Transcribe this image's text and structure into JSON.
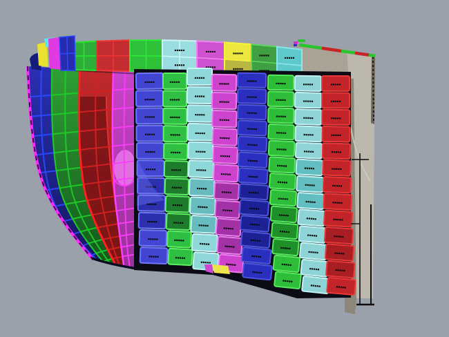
{
  "view": {
    "type": "3d-cad-viewport",
    "background": "#9ba1aa",
    "description": "Ship stern shell plating colored by strake with plate ID labels"
  },
  "plate_label_mark": "▪▪▪▪▪",
  "label_color": "#0a0a0a",
  "shell_backdrop": "#0b0b16",
  "under_shadow": "#0a0a20",
  "columns": [
    {
      "id": "col-a",
      "plates": 11,
      "fill": "#4245d2",
      "border": "#7177fb",
      "dark": "#2c2fae",
      "dark_rows": [
        6,
        9
      ]
    },
    {
      "id": "col-b",
      "plates": 11,
      "fill": "#2fc043",
      "border": "#5bf163",
      "dark": "#1e7d2c",
      "dark_rows": [
        5,
        9
      ]
    },
    {
      "id": "col-c",
      "plates": 11,
      "fill": "#8ed8da",
      "border": "#c6f5f5",
      "dark": "#68bcc0",
      "dark_rows": [
        6,
        9
      ]
    },
    {
      "id": "col-d",
      "plates": 11,
      "fill": "#cd43ce",
      "border": "#ef7cf0",
      "dark": "#a332a6",
      "dark_rows": [
        6,
        10
      ]
    },
    {
      "id": "col-e",
      "plates": 13,
      "fill": "#2a2fc0",
      "border": "#4d55e0",
      "dark": "#1d2195",
      "dark_rows": [
        7,
        11
      ]
    },
    {
      "id": "col-f",
      "plates": 13,
      "fill": "#2ebd38",
      "border": "#55ea5c",
      "dark": "#1f8f2a",
      "dark_rows": [
        8,
        11
      ]
    },
    {
      "id": "col-g",
      "plates": 13,
      "fill": "#8ed4d6",
      "border": "#c2f1f1",
      "dark": "#63bec2",
      "dark_rows": [
        5,
        8
      ]
    },
    {
      "id": "col-h",
      "plates": 13,
      "fill": "#c2242a",
      "border": "#e83838",
      "dark": "#a81e22",
      "dark_rows": [
        9,
        12
      ]
    }
  ],
  "top_band": [
    {
      "id": "deck-g1",
      "fill": "#2eae38",
      "border": "#28e22f",
      "labeled": false,
      "cols": 2,
      "rows": 2
    },
    {
      "id": "deck-r1",
      "fill": "#c42d2f",
      "border": "#ef3434",
      "labeled": false,
      "cols": 2,
      "rows": 2
    },
    {
      "id": "deck-g2",
      "fill": "#2fc03a",
      "border": "#2fe838",
      "labeled": false,
      "cols": 2,
      "rows": 2
    },
    {
      "id": "deck-c1",
      "fill": "#9adde0",
      "border": "#cdf6f6",
      "labeled": true,
      "cols": 2,
      "rows": 2
    },
    {
      "id": "deck-m1",
      "fill": "#cf52d0",
      "border": "#ee86ee",
      "labeled": true,
      "cols": 1,
      "rows": 2
    },
    {
      "id": "deck-y1",
      "fill": "#ece73e",
      "fill2": "#b9b742",
      "border": "#f6f23a",
      "labeled": true,
      "cols": 1,
      "rows": 2
    },
    {
      "id": "deck-dg",
      "fill": "#3f9f42",
      "border": "#5ad95e",
      "labeled": true,
      "cols": 1,
      "rows": 2
    },
    {
      "id": "deck-t1",
      "fill": "#5ec9cb",
      "border": "#8ce8e8",
      "labeled": true,
      "cols": 1,
      "rows": 2
    }
  ],
  "wireframe": [
    {
      "id": "strake-blue",
      "fill_top": "#2a2fb4",
      "fill_bottom": "#14175f",
      "line": "#2a4aff"
    },
    {
      "id": "strake-green",
      "fill_top": "#2f9f35",
      "fill_bottom": "#14581c",
      "line": "#1ecb28"
    },
    {
      "id": "strake-red",
      "fill_top": "#c02a2c",
      "fill_bottom": "#8c1d1f",
      "line": "#d42020",
      "dark": "#7c1517",
      "dark_edge": "#e83030"
    },
    {
      "id": "strake-magenta",
      "fill_top": "#c944ca",
      "fill_bottom": "#993099",
      "line": "#f73df7",
      "light": "#e472e4"
    }
  ],
  "silhouette": {
    "edge": "#ff2bff",
    "dash": "#3a0050"
  },
  "corner": {
    "navy": "#141b78",
    "yellow": "#e9e132",
    "cyan": "#5fe2e8",
    "magenta": "#e23ae2",
    "blue_fill": "#272cae",
    "blue_line": "#2a4cff"
  },
  "stern_structure": {
    "face": "#bdb8ae",
    "top_face": "#a9a295",
    "shadow": "#8d877b",
    "edge_sliver": "#6e6758",
    "arc": "#cfcbc1",
    "line": "#0e0e0e"
  },
  "deck_edge_stripes": {
    "green": "#2bc42e",
    "red": "#c82428",
    "flags": [
      "#d030d0",
      "#2bc42e",
      "#2a2fc0"
    ]
  },
  "extras": {
    "yellow_sliver": "#ece44a",
    "magenta_tail": "#cf46cf",
    "col_a_highlight": "#6b74f5"
  }
}
